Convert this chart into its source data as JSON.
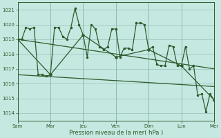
{
  "xlabel": "Pression niveau de la mer( hPa )",
  "bg_color": "#c5e8e0",
  "grid_color": "#a0c8c0",
  "line_color": "#2d5a2d",
  "ylim": [
    1013.5,
    1021.5
  ],
  "yticks": [
    1014,
    1015,
    1016,
    1017,
    1018,
    1019,
    1020,
    1021
  ],
  "xlim": [
    0,
    96
  ],
  "day_labels": [
    "Sam",
    "Mar",
    "Jeu",
    "Ven",
    "Dim",
    "Lun",
    "Mer"
  ],
  "day_positions": [
    0,
    16,
    32,
    48,
    64,
    80,
    96
  ],
  "series1_x": [
    0,
    2,
    4,
    6,
    8,
    10,
    12,
    14,
    16,
    18,
    20,
    22,
    24,
    26,
    28,
    30,
    32,
    34,
    36,
    38,
    40,
    42,
    44,
    46,
    48,
    50,
    52,
    54,
    56,
    58,
    60,
    62,
    64,
    66,
    68,
    70,
    72,
    74,
    76,
    78,
    80,
    82,
    84,
    86,
    88,
    90,
    92,
    94,
    96
  ],
  "series1_y": [
    1019.0,
    1019.0,
    1019.8,
    1019.7,
    1019.8,
    1016.6,
    1016.6,
    1016.5,
    1016.6,
    1019.8,
    1019.8,
    1019.2,
    1019.0,
    1019.8,
    1021.1,
    1020.0,
    1019.3,
    1017.8,
    1020.0,
    1019.7,
    1018.5,
    1018.3,
    1018.5,
    1019.7,
    1019.7,
    1017.8,
    1018.4,
    1018.4,
    1018.3,
    1020.1,
    1020.1,
    1020.0,
    1018.3,
    1018.5,
    1017.3,
    1017.2,
    1017.2,
    1018.6,
    1018.5,
    1017.2,
    1017.2,
    1018.5,
    1017.0,
    1017.2,
    1015.2,
    1015.3,
    1014.1,
    1015.3,
    1014.9
  ],
  "series2_x": [
    0,
    16,
    32,
    48,
    64,
    80,
    96
  ],
  "series2_y": [
    1019.0,
    1016.6,
    1019.3,
    1017.8,
    1018.3,
    1017.2,
    1014.9
  ],
  "series3_x": [
    0,
    96
  ],
  "series3_y": [
    1019.0,
    1017.0
  ],
  "series4_x": [
    0,
    96
  ],
  "series4_y": [
    1016.6,
    1015.8
  ]
}
